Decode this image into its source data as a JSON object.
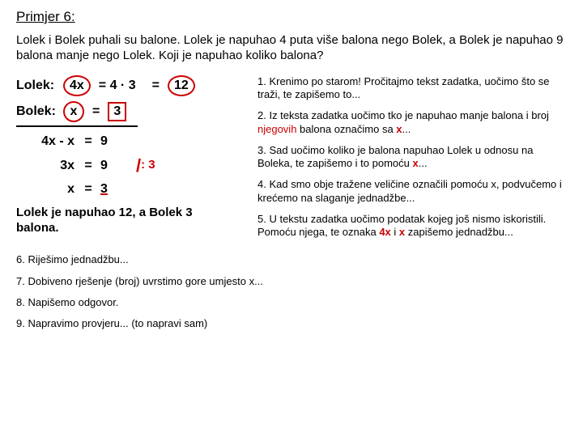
{
  "title": "Primjer 6:",
  "problem": "Lolek i Bolek puhali su balone. Lolek je napuhao 4 puta više balona nego Bolek, a Bolek je napuhao 9 balona manje nego Lolek. Koji je napuhao koliko balona?",
  "left": {
    "lolek_label": "Lolek:",
    "lolek_4x": "4x",
    "lolek_eq": "= 4 · 3",
    "lolek_eq2": "=",
    "lolek_ans": "12",
    "bolek_label": "Bolek:",
    "bolek_x": "x",
    "bolek_eq": "=",
    "bolek_ans": "3",
    "work": [
      {
        "a": "4x - x",
        "b": "=",
        "c": "9"
      },
      {
        "a": "3x",
        "b": "=",
        "c": "9"
      },
      {
        "a": "x",
        "b": "=",
        "c": "3"
      }
    ],
    "divop": "/",
    "divtxt": ": 3",
    "conclusion": "Lolek je napuhao 12, a Bolek 3 balona."
  },
  "steps": {
    "s1": "1. Krenimo po starom! Pročitajmo tekst zadatka, uočimo što se traži, te zapišemo to...",
    "s2a": "2. Iz teksta zadatka uočimo tko je napuhao manje balona i broj ",
    "s2b": "njegovih",
    "s2c": " balona označimo sa ",
    "s2x": "x",
    "s2d": "...",
    "s3a": "3. Sad uočimo koliko je balona napuhao Lolek u odnosu na Boleka, te zapišemo i to pomoću ",
    "s3x": "x",
    "s3b": "...",
    "s4": "4. Kad smo obje tražene veličine označili pomoću x, podvučemo i krećemo na slaganje jednadžbe...",
    "s5a": "5. U tekstu zadatka uočimo podatak kojeg još nismo iskoristili. Pomoću njega, te oznaka ",
    "s5b": "4x",
    "s5c": " i ",
    "s5d": "x",
    "s5e": " zapišemo jednadžbu...",
    "s6": "6. Riješimo jednadžbu...",
    "s7": "7. Dobiveno rješenje (broj) uvrstimo gore umjesto x...",
    "s8": "8. Napišemo odgovor.",
    "s9": "9. Napravimo provjeru... (to napravi sam)"
  }
}
